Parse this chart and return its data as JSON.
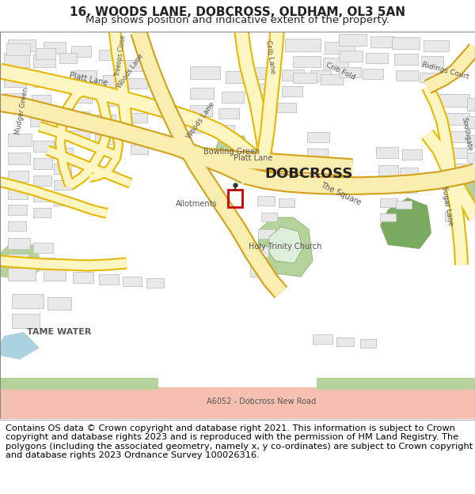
{
  "title": "16, WOODS LANE, DOBCROSS, OLDHAM, OL3 5AN",
  "subtitle": "Map shows position and indicative extent of the property.",
  "copyright_text": "Contains OS data © Crown copyright and database right 2021. This information is subject to Crown copyright and database rights 2023 and is reproduced with the permission of HM Land Registry. The polygons (including the associated geometry, namely x, y co-ordinates) are subject to Crown copyright and database rights 2023 Ordnance Survey 100026316.",
  "title_fontsize": 11,
  "subtitle_fontsize": 9.5,
  "copyright_fontsize": 8.2,
  "map_bg": "#f8f8f8",
  "road_fill": "#fdf6c3",
  "road_border": "#e8b800",
  "road_major_fill": "#faedb0",
  "road_major_border": "#d4a017",
  "green_area": "#b5d29b",
  "green_dark": "#7aaa60",
  "building_fill": "#e8e8e8",
  "building_outline": "#c0c0c0",
  "water_blue": "#aad3df",
  "plot_red": "#cc0000",
  "text_dark": "#555555",
  "text_black": "#222222",
  "copyright_bg": "#ffffff",
  "header_bg": "#ffffff",
  "map_border": "#cccccc",
  "road_pink": "#f5c0b0",
  "fig_width": 6.0,
  "fig_height": 6.25,
  "dpi": 100
}
